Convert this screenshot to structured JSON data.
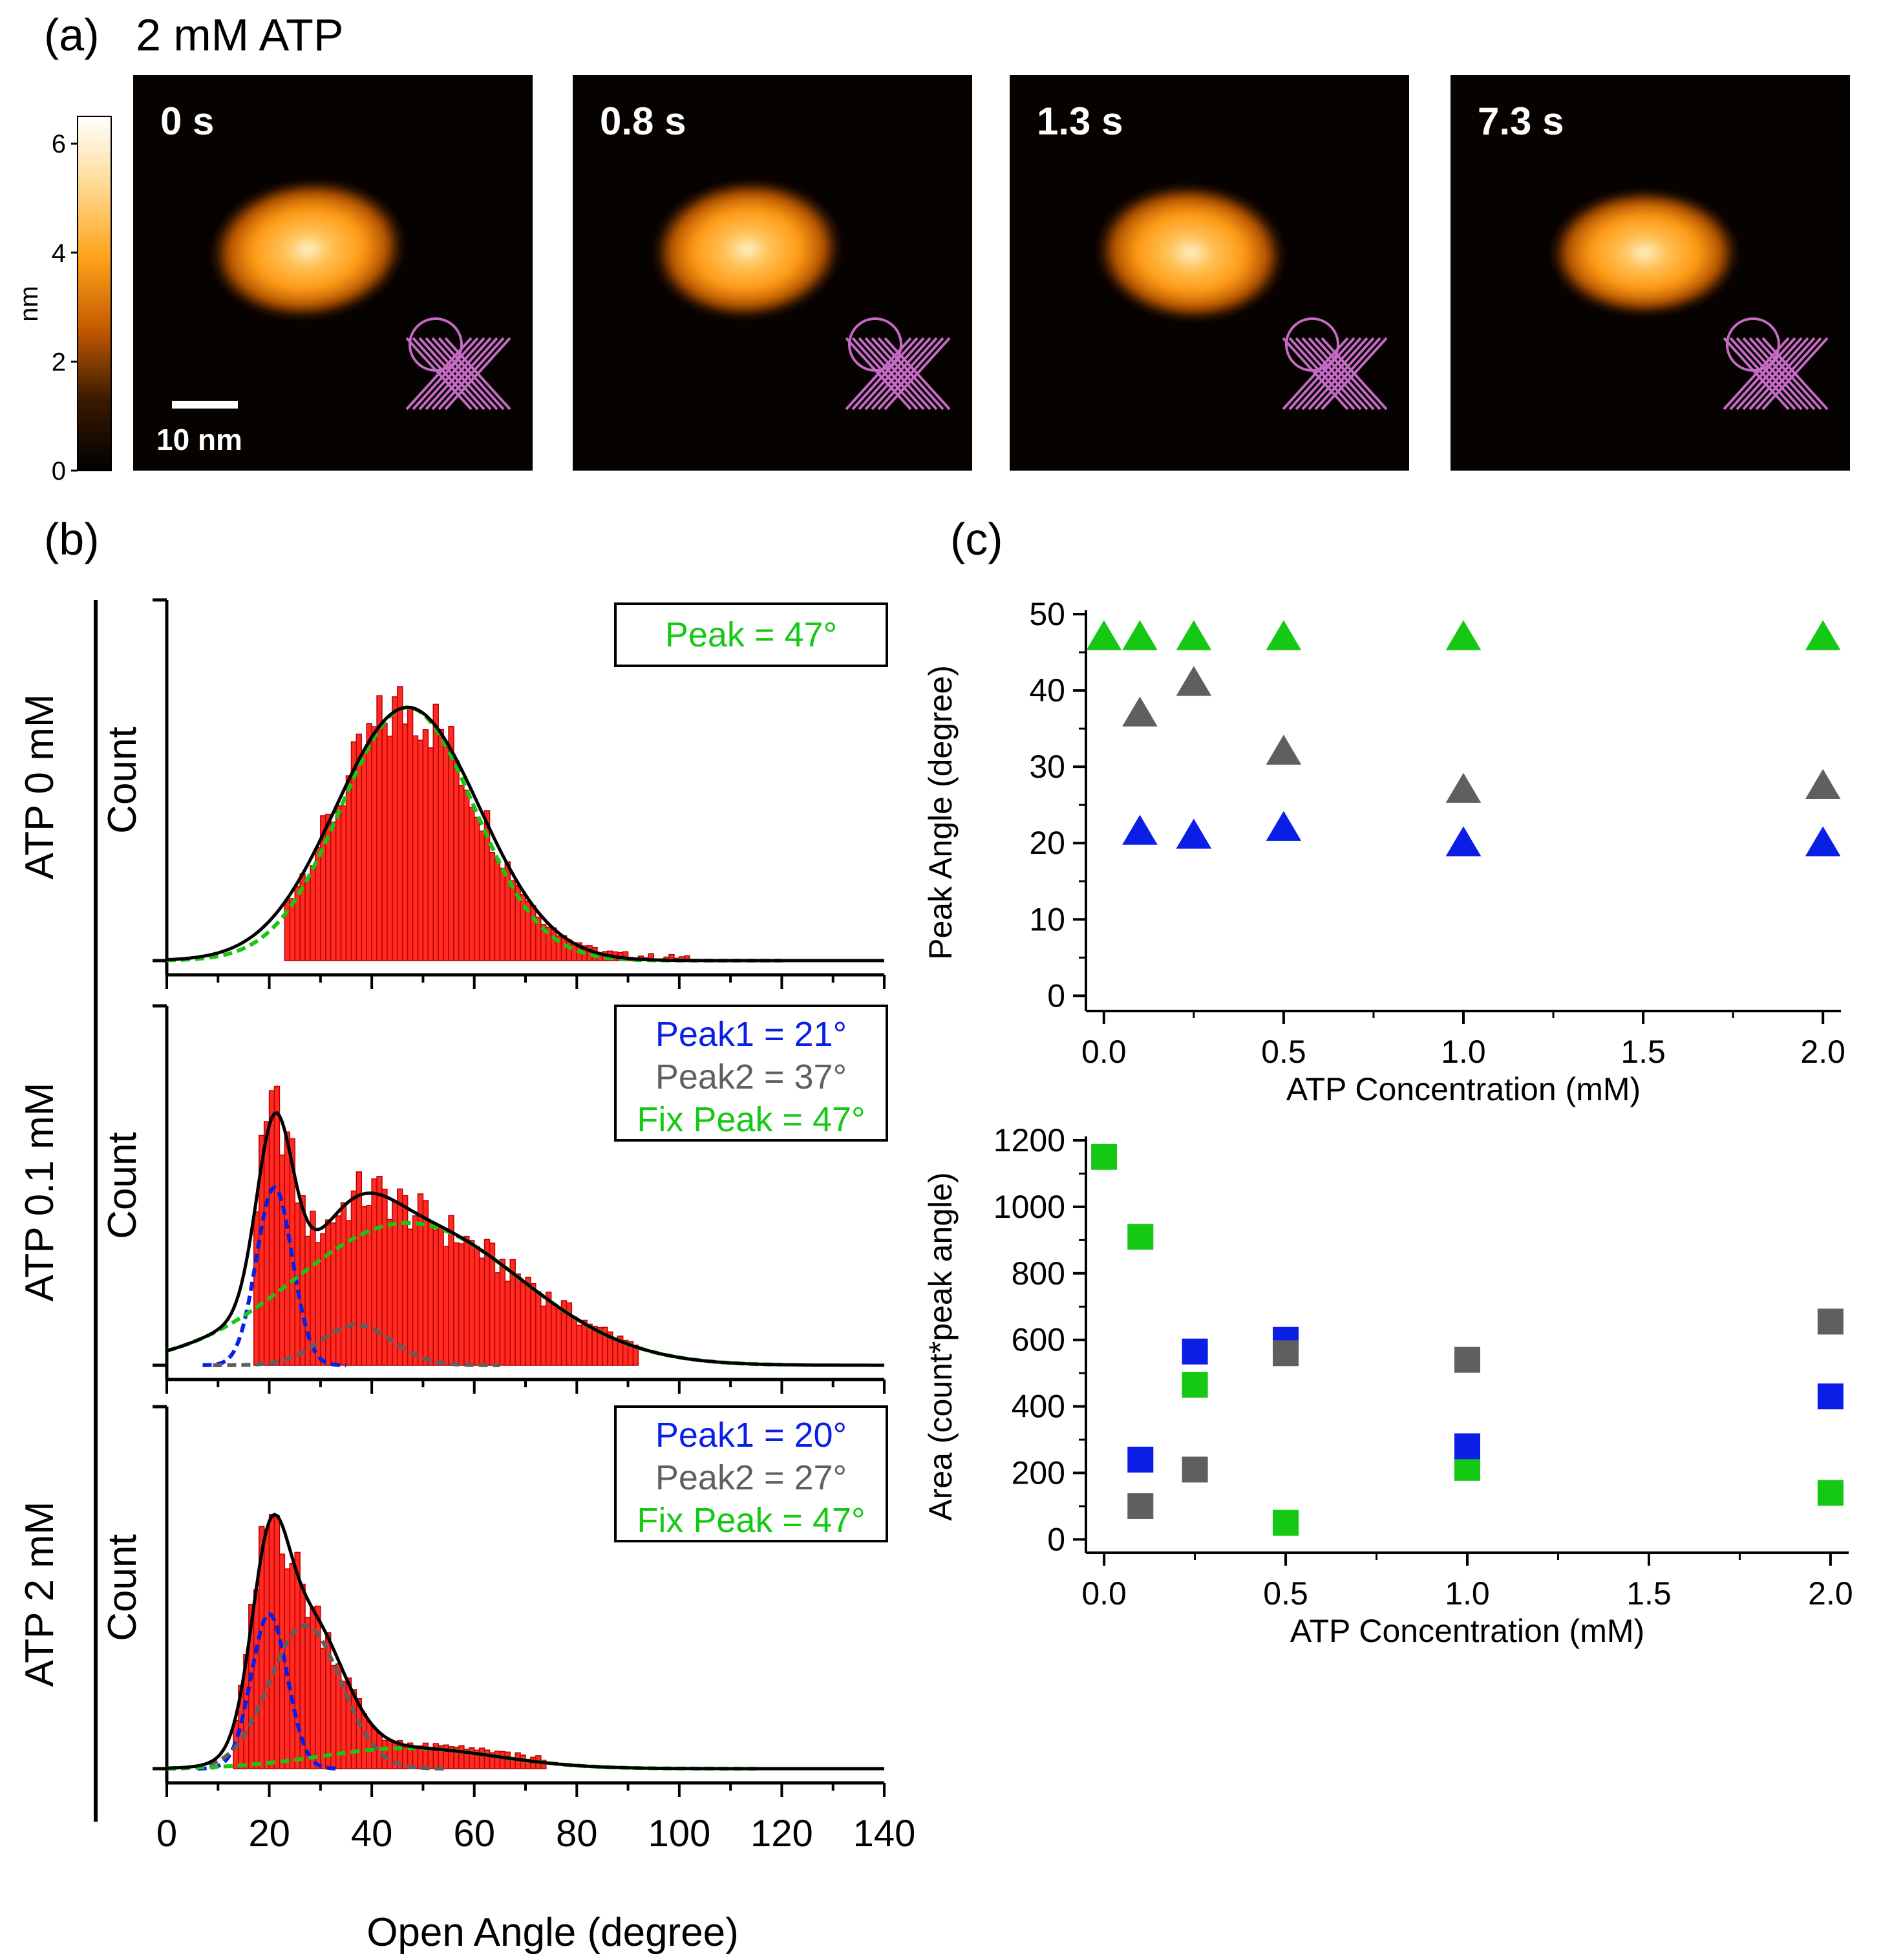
{
  "colors": {
    "blue": "#0a1ee6",
    "gray": "#5f5f5f",
    "green": "#14c814",
    "hist_fill": "#ff2a22",
    "hist_edge": "#b80000",
    "afm_dark": "#050200",
    "afm_glow": "#ff9d1a",
    "pdb_model": "#d070d0"
  },
  "panel_a": {
    "label": "(a)",
    "title": "2 mM ATP",
    "colorbar": {
      "unit": "nm",
      "ticks": [
        {
          "v": 0,
          "label": "0"
        },
        {
          "v": 2,
          "label": "2"
        },
        {
          "v": 4,
          "label": "4"
        },
        {
          "v": 6,
          "label": "6"
        }
      ],
      "max": 6.5,
      "gradient": [
        "#000000",
        "#3a1a00",
        "#c45a00",
        "#ffa21a",
        "#ffd990",
        "#ffffff"
      ]
    },
    "scale_bar": "10 nm",
    "frames": [
      {
        "time": "0 s"
      },
      {
        "time": "0.8 s"
      },
      {
        "time": "1.3 s"
      },
      {
        "time": "7.3 s"
      }
    ]
  },
  "panel_b": {
    "label": "(b)",
    "xlabel": "Open Angle (degree)",
    "xlim": [
      0,
      140
    ],
    "xticks": [
      0,
      20,
      40,
      60,
      80,
      100,
      120,
      140
    ],
    "ylabel": "Count",
    "rows": [
      {
        "label": "ATP 0 mM",
        "legend": [
          {
            "text": "Peak = 47°",
            "color": "green"
          }
        ],
        "components": [
          {
            "mu": 47,
            "sigma": 13,
            "amp": 1.0,
            "color": "green"
          }
        ],
        "data_range": [
          23,
          102
        ],
        "total_mu": 47,
        "total_sigma": 14,
        "hist_scale": 0.62
      },
      {
        "label": "ATP 0.1 mM",
        "legend": [
          {
            "text": "Peak1 = 21°",
            "color": "blue"
          },
          {
            "text": "Peak2 = 37°",
            "color": "gray"
          },
          {
            "text": "Fix Peak = 47°",
            "color": "green"
          }
        ],
        "components": [
          {
            "mu": 21,
            "sigma": 3.5,
            "amp": 0.75,
            "color": "blue"
          },
          {
            "mu": 37,
            "sigma": 7,
            "amp": 0.17,
            "color": "gray"
          },
          {
            "mu": 47,
            "sigma": 22,
            "amp": 0.6,
            "color": "green"
          }
        ],
        "data_range": [
          17,
          92
        ],
        "hist_scale": 0.42
      },
      {
        "label": "ATP 2 mM",
        "legend": [
          {
            "text": "Peak1 = 20°",
            "color": "blue"
          },
          {
            "text": "Peak2 = 27°",
            "color": "gray"
          },
          {
            "text": "Fix Peak = 47°",
            "color": "green"
          }
        ],
        "components": [
          {
            "mu": 20,
            "sigma": 3.5,
            "amp": 0.68,
            "color": "blue"
          },
          {
            "mu": 27,
            "sigma": 7,
            "amp": 0.63,
            "color": "gray"
          },
          {
            "mu": 47,
            "sigma": 17,
            "amp": 0.09,
            "color": "green"
          }
        ],
        "data_range": [
          13,
          74
        ],
        "hist_scale": 0.5
      }
    ]
  },
  "chart_data": [
    {
      "type": "scatter",
      "title": "",
      "xlabel": "ATP Concentration (mM)",
      "ylabel": "Peak Angle (degree)",
      "xlim": [
        -0.05,
        2.05
      ],
      "ylim": [
        -2,
        50
      ],
      "xticks": [
        0.0,
        0.5,
        1.0,
        1.5,
        2.0
      ],
      "xtick_labels": [
        "0.0",
        "0.5",
        "1.0",
        "1.5",
        "2.0"
      ],
      "yticks": [
        0,
        10,
        20,
        30,
        40,
        50
      ],
      "marker": "triangle",
      "series": [
        {
          "color": "green",
          "x": [
            0,
            0.1,
            0.25,
            0.5,
            1.0,
            2.0
          ],
          "y": [
            47,
            47,
            47,
            47,
            47,
            47
          ]
        },
        {
          "color": "gray",
          "x": [
            0.1,
            0.25,
            0.5,
            1.0,
            2.0
          ],
          "y": [
            37,
            41,
            32,
            27,
            27.5
          ]
        },
        {
          "color": "blue",
          "x": [
            0.1,
            0.25,
            0.5,
            1.0,
            2.0
          ],
          "y": [
            21.5,
            21,
            22,
            20,
            20
          ]
        }
      ]
    },
    {
      "type": "scatter",
      "title": "",
      "xlabel": "ATP Concentration (mM)",
      "ylabel": "Area (count*peak angle)",
      "xlim": [
        -0.05,
        2.05
      ],
      "ylim": [
        -40,
        1200
      ],
      "xticks": [
        0.0,
        0.5,
        1.0,
        1.5,
        2.0
      ],
      "xtick_labels": [
        "0.0",
        "0.5",
        "1.0",
        "1.5",
        "2.0"
      ],
      "yticks": [
        0,
        200,
        400,
        600,
        800,
        1000,
        1200
      ],
      "marker": "square",
      "series": [
        {
          "color": "green",
          "x": [
            0,
            0.1,
            0.25,
            0.5,
            1.0,
            2.0
          ],
          "y": [
            1150,
            910,
            465,
            50,
            215,
            140
          ]
        },
        {
          "color": "blue",
          "x": [
            0.1,
            0.25,
            0.5,
            1.0,
            2.0
          ],
          "y": [
            240,
            565,
            600,
            280,
            430
          ]
        },
        {
          "color": "gray",
          "x": [
            0.1,
            0.25,
            0.5,
            1.0,
            2.0
          ],
          "y": [
            100,
            210,
            560,
            540,
            655
          ]
        }
      ]
    }
  ],
  "panel_c": {
    "label": "(c)"
  }
}
